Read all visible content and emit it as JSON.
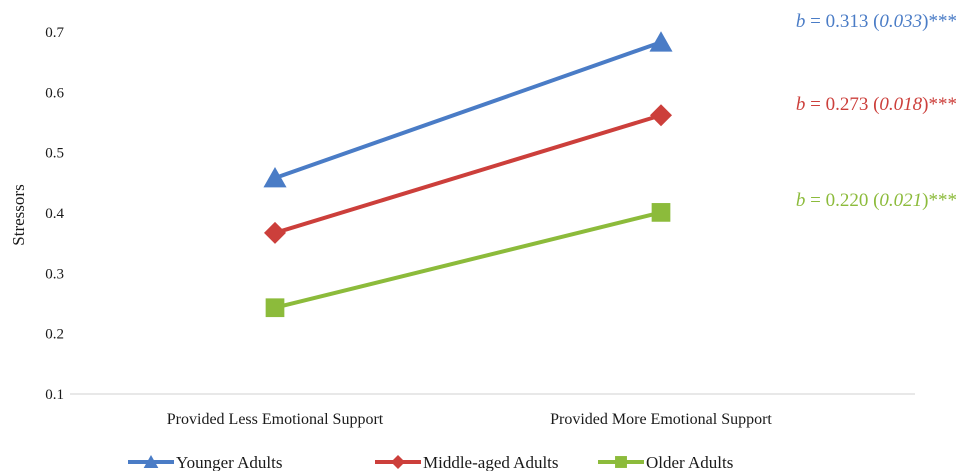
{
  "chart_data": {
    "type": "line",
    "ylabel": "Stressors",
    "ylim": [
      0.1,
      0.7
    ],
    "yticks": [
      0.1,
      0.2,
      0.3,
      0.4,
      0.5,
      0.6,
      0.7
    ],
    "ytick_labels": [
      "0.1",
      "0.2",
      "0.3",
      "0.4",
      "0.5",
      "0.6",
      "0.7"
    ],
    "categories": [
      "Provided Less Emotional Support",
      "Provided More Emotional Support"
    ],
    "grid": false,
    "legend_position": "bottom",
    "series": [
      {
        "name": "Younger Adults",
        "values": [
          0.458,
          0.683
        ],
        "color": "#4a7cc6",
        "marker": "triangle",
        "annotation": {
          "prefix": "b",
          "eq": " = 0.313 (",
          "se": "0.033",
          "close": ")***"
        }
      },
      {
        "name": "Middle-aged Adults",
        "values": [
          0.367,
          0.562
        ],
        "color": "#cc3f3b",
        "marker": "diamond",
        "annotation": {
          "prefix": "b",
          "eq": " = 0.273 (",
          "se": "0.018",
          "close": ")***"
        }
      },
      {
        "name": "Older Adults",
        "values": [
          0.243,
          0.401
        ],
        "color": "#8cbb3b",
        "marker": "square",
        "annotation": {
          "prefix": "b",
          "eq": " = 0.220 (",
          "se": "0.021",
          "close": ")***"
        }
      }
    ]
  }
}
